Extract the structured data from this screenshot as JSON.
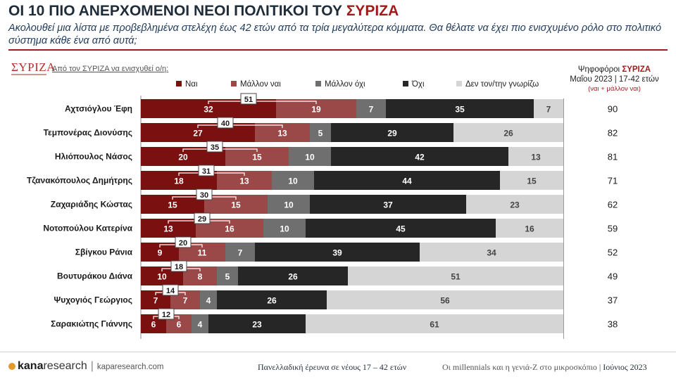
{
  "header": {
    "title_pre": "ΟΙ 10 ΠΙΟ ΑΝΕΡΧΟΜΕΝΟΙ ΝΕΟΙ ΠΟΛΙΤΙΚΟΙ ΤΟΥ ",
    "title_accent": "ΣΥΡΙΖΑ",
    "subtitle": "Ακολουθεί μια λίστα με προβεβλημένα στελέχη έως 42 ετών από τα τρία μεγαλύτερα κόμματα. Θα θέλατε να έχει πιο ενισχυμένο ρόλο στο πολιτικό σύστημα κάθε ένα από αυτά;"
  },
  "party_logo": "ΣΥΡΙΖΑ",
  "question_label": "Από τον ΣΥΡΙΖΑ να ενισχυθεί ο/η:",
  "right_header": {
    "line1_pre": "Ψηφοφόροι ",
    "line1_accent": "ΣΥΡΙΖΑ",
    "line2": "Μαΐου 2023 | 17-42 ετών",
    "line3": "(ναι + μάλλον ναι)"
  },
  "colors": {
    "yes": "#7a1010",
    "rather_yes": "#9b4848",
    "rather_no": "#6f6f6f",
    "no": "#262626",
    "dont_know": "#d5d5d5",
    "accent": "#9c1c1c"
  },
  "chart_data": {
    "type": "bar",
    "orientation": "horizontal-stacked",
    "categories": [
      "Αχτσιόγλου Έφη",
      "Τεμπονέρας Διονύσης",
      "Ηλιόπουλος Νάσος",
      "Τζανακόπουλος Δημήτρης",
      "Ζαχαριάδης Κώστας",
      "Νοτοπούλου Κατερίνα",
      "Σβίγκου Ράνια",
      "Βουτυράκου Διάνα",
      "Ψυχογιός Γεώργιος",
      "Σαρακιώτης Γιάννης"
    ],
    "series": [
      {
        "name": "Ναι",
        "values": [
          32,
          27,
          20,
          18,
          15,
          13,
          9,
          10,
          7,
          6
        ]
      },
      {
        "name": "Μάλλον ναι",
        "values": [
          19,
          13,
          15,
          13,
          15,
          16,
          11,
          8,
          7,
          6
        ]
      },
      {
        "name": "Μάλλον όχι",
        "values": [
          7,
          5,
          10,
          10,
          10,
          10,
          7,
          5,
          4,
          4
        ]
      },
      {
        "name": "Όχι",
        "values": [
          35,
          29,
          42,
          44,
          37,
          45,
          39,
          26,
          26,
          23
        ]
      },
      {
        "name": "Δεν τον/την γνωρίζω",
        "values": [
          7,
          26,
          13,
          15,
          23,
          16,
          34,
          51,
          56,
          61
        ]
      }
    ],
    "totals_yes_plus_rather_yes": [
      51,
      40,
      35,
      31,
      30,
      29,
      20,
      18,
      14,
      12
    ],
    "voters_syriza_may_2023": [
      90,
      82,
      81,
      71,
      62,
      59,
      52,
      49,
      37,
      38
    ],
    "xlim": [
      0,
      100
    ]
  },
  "footer": {
    "brand_a": "kana",
    "brand_b": "research",
    "site": "kaparesearch.com",
    "middle": "Πανελλαδική έρευνα σε νέους 17 – 42 ετών",
    "right_text": "Οι millennials και η γενιά-Ζ στο μικροσκόπιο | ",
    "right_date": "Ιούνιος 2023"
  }
}
